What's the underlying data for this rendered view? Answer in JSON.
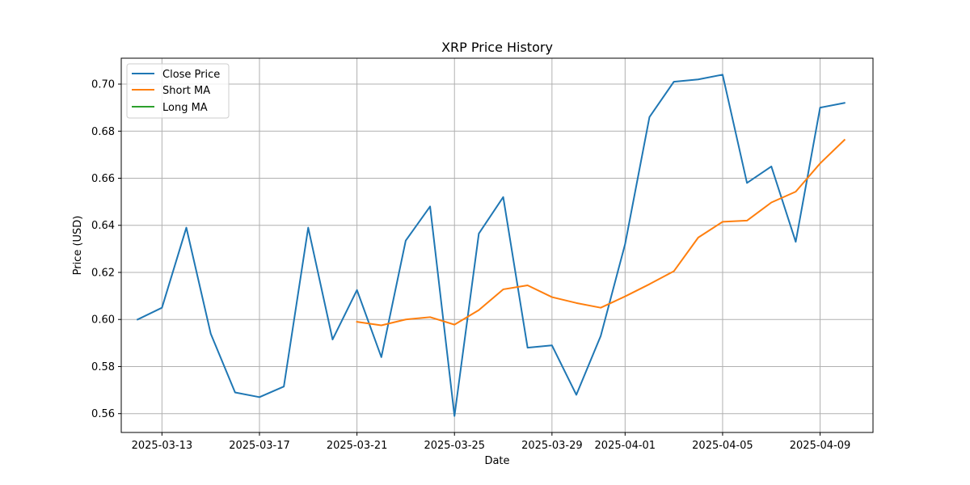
{
  "chart_data": {
    "type": "line",
    "title": "XRP Price History",
    "xlabel": "Date",
    "ylabel": "Price (USD)",
    "grid": true,
    "legend_position": "top-left",
    "x_ticks": [
      "2025-03-13",
      "2025-03-17",
      "2025-03-21",
      "2025-03-25",
      "2025-03-29",
      "2025-04-01",
      "2025-04-05",
      "2025-04-09"
    ],
    "x_dates": [
      "2025-03-12",
      "2025-03-13",
      "2025-03-14",
      "2025-03-15",
      "2025-03-16",
      "2025-03-17",
      "2025-03-18",
      "2025-03-19",
      "2025-03-20",
      "2025-03-21",
      "2025-03-22",
      "2025-03-23",
      "2025-03-24",
      "2025-03-25",
      "2025-03-26",
      "2025-03-27",
      "2025-03-28",
      "2025-03-29",
      "2025-03-30",
      "2025-03-31",
      "2025-04-01",
      "2025-04-02",
      "2025-04-03",
      "2025-04-04",
      "2025-04-05",
      "2025-04-06",
      "2025-04-07",
      "2025-04-08",
      "2025-04-09",
      "2025-04-10"
    ],
    "ylim": [
      0.552,
      0.711
    ],
    "y_ticks": [
      0.56,
      0.58,
      0.6,
      0.62,
      0.64,
      0.66,
      0.68,
      0.7
    ],
    "series": [
      {
        "name": "Close Price",
        "color": "#1f77b4",
        "values": [
          0.6,
          0.605,
          0.639,
          0.594,
          0.569,
          0.567,
          0.5715,
          0.639,
          0.5915,
          0.6125,
          0.584,
          0.6335,
          0.648,
          0.559,
          0.6365,
          0.652,
          0.588,
          0.589,
          0.568,
          0.593,
          0.632,
          0.686,
          0.701,
          0.702,
          0.704,
          0.658,
          0.665,
          0.633,
          0.69,
          0.692
        ]
      },
      {
        "name": "Short MA",
        "color": "#ff7f0e",
        "values": [
          null,
          null,
          null,
          null,
          null,
          null,
          null,
          null,
          null,
          0.599,
          0.5975,
          0.6,
          0.601,
          0.5978,
          0.604,
          0.6128,
          0.6145,
          0.6095,
          0.607,
          0.605,
          0.6098,
          0.615,
          0.6205,
          0.6348,
          0.6415,
          0.642,
          0.6497,
          0.6543,
          0.6663,
          0.6763
        ]
      },
      {
        "name": "Long MA",
        "color": "#2ca02c",
        "values": []
      }
    ]
  }
}
